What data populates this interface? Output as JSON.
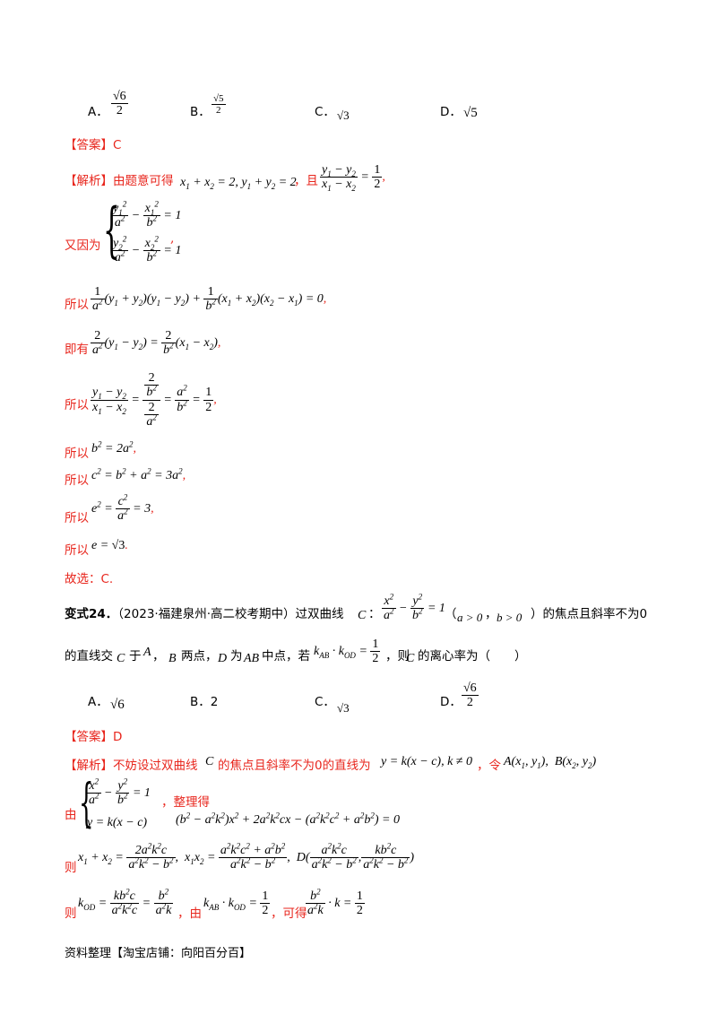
{
  "q23": {
    "opt_a": "A．",
    "opt_b": "B．",
    "opt_c": "C．",
    "opt_d": "D．",
    "answer_label": "【答案】",
    "answer_value": "C",
    "analysis_label": "【解析】",
    "analysis_intro": "由题意可得",
    "also": "，且",
    "again": "又因为",
    "so1": "所以",
    "ie": "即有",
    "so2": "所以",
    "so3": "所以",
    "so4": "所以",
    "so5": "所以",
    "so6": "所以",
    "choose": "故选：C."
  },
  "q24": {
    "variant_label": "变式24．",
    "source": "（2023·福建泉州·高二校考期中）过双曲线",
    "after_eq": "的焦点且斜率不为0",
    "line2_a": "的直线交",
    "line2_b": "于",
    "line2_c": "两点，",
    "line2_d": "为",
    "line2_e": "中点，若",
    "line2_f": "，则",
    "line2_g": "的离心率为（　　）",
    "opt_a": "A．",
    "opt_b": "B．2",
    "opt_c": "C．",
    "opt_d": "D．",
    "answer_label": "【答案】",
    "answer_value": "D",
    "analysis_label": "【解析】",
    "analysis_text1": "不妨设过双曲线",
    "analysis_text2": "的焦点且斜率不为0的直线为",
    "analysis_text3": "，令",
    "by": "由",
    "arrange": "，整理得",
    "then1": "则",
    "then2": "则",
    "by2": "，由",
    "get": "，可得"
  },
  "footer": {
    "text": "资料整理【淘宝店铺：向阳百分百】"
  }
}
